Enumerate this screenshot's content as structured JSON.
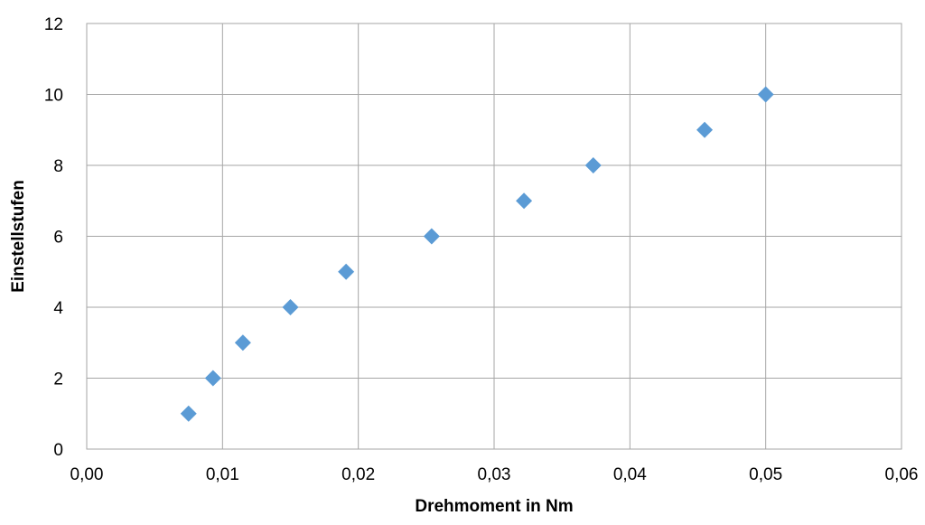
{
  "chart_data": {
    "type": "scatter",
    "title": "",
    "xlabel": "Drehmoment in Nm",
    "ylabel": "Einstellstufen",
    "xlim": [
      0,
      0.06
    ],
    "ylim": [
      0,
      12
    ],
    "x_ticks": [
      0,
      0.01,
      0.02,
      0.03,
      0.04,
      0.05,
      0.06
    ],
    "x_tick_labels": [
      "0,00",
      "0,01",
      "0,02",
      "0,03",
      "0,04",
      "0,05",
      "0,06"
    ],
    "y_ticks": [
      0,
      2,
      4,
      6,
      8,
      10,
      12
    ],
    "y_tick_labels": [
      "0",
      "2",
      "4",
      "6",
      "8",
      "10",
      "12"
    ],
    "grid": true,
    "legend": "none",
    "marker": "diamond",
    "series": [
      {
        "color": "#5B9BD5",
        "points": [
          {
            "x": 0.0075,
            "y": 1
          },
          {
            "x": 0.0093,
            "y": 2
          },
          {
            "x": 0.0115,
            "y": 3
          },
          {
            "x": 0.015,
            "y": 4
          },
          {
            "x": 0.0191,
            "y": 5
          },
          {
            "x": 0.0254,
            "y": 6
          },
          {
            "x": 0.0322,
            "y": 7
          },
          {
            "x": 0.0373,
            "y": 8
          },
          {
            "x": 0.0455,
            "y": 9
          },
          {
            "x": 0.05,
            "y": 10
          }
        ]
      }
    ]
  }
}
